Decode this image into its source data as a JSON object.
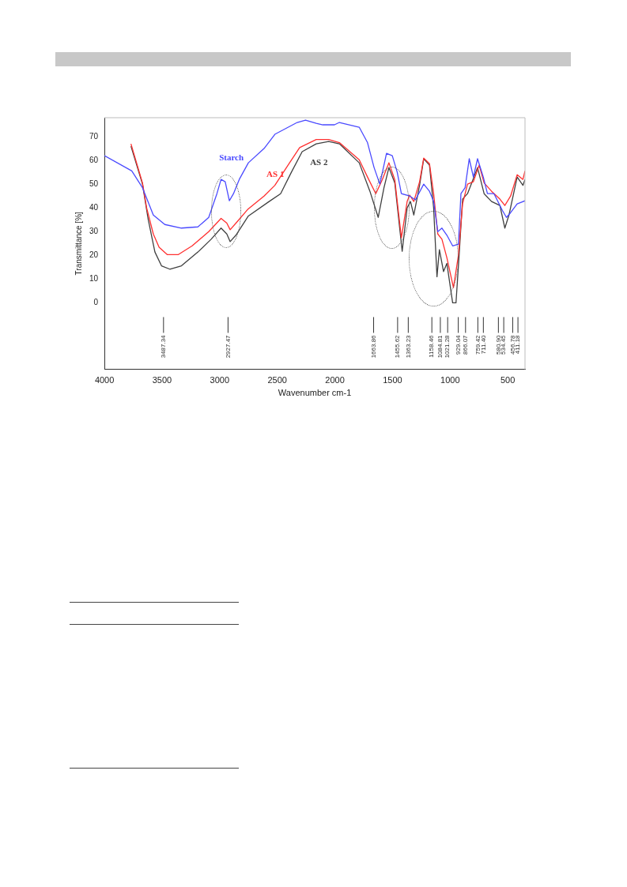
{
  "chart_data": {
    "type": "line",
    "xlabel": "Wavenumber cm-1",
    "ylabel": "Transmittance [%]",
    "xlim": [
      4000,
      350
    ],
    "xticks": [
      4000,
      3500,
      3000,
      2500,
      2000,
      1500,
      1000,
      500
    ],
    "ylim": [
      -28,
      78
    ],
    "yticks": [
      0,
      10,
      20,
      30,
      40,
      50,
      60,
      70
    ],
    "grid": false,
    "legend": false,
    "marker": "none",
    "line_style": "solid",
    "series": [
      {
        "name": "Starch",
        "color": "#4a4aff",
        "x": [
          4000,
          3763,
          3670,
          3576,
          3476,
          3332,
          3189,
          3095,
          3024,
          2988,
          2952,
          2916,
          2880,
          2830,
          2751,
          2615,
          2521,
          2327,
          2255,
          2162,
          2105,
          2004,
          1961,
          1789,
          1717,
          1660,
          1610,
          1552,
          1502,
          1459,
          1423,
          1351,
          1301,
          1229,
          1179,
          1143,
          1107,
          1071,
          1028,
          978,
          928,
          906,
          870,
          834,
          798,
          762,
          712,
          676,
          619,
          547,
          511,
          475,
          418,
          350
        ],
        "values": [
          62,
          55.6,
          48.5,
          37,
          33,
          31.5,
          32,
          36,
          46,
          52,
          51,
          43,
          46,
          52,
          59,
          65,
          71,
          76,
          77,
          75.6,
          75,
          75,
          76,
          74,
          67.5,
          57,
          50,
          63,
          62,
          55,
          46,
          45,
          43.4,
          50,
          47,
          42.7,
          30,
          31.5,
          28.5,
          24,
          24.7,
          46,
          48.5,
          60.7,
          53,
          60.7,
          53,
          46,
          46,
          39,
          36,
          38,
          41.7,
          43
        ]
      },
      {
        "name": "AS 1",
        "color": "#ff3030",
        "x": [
          3770,
          3670,
          3634,
          3576,
          3526,
          3454,
          3361,
          3239,
          3095,
          2988,
          2938,
          2909,
          2859,
          2758,
          2615,
          2521,
          2399,
          2306,
          2162,
          2054,
          1961,
          1789,
          1717,
          1645,
          1588,
          1531,
          1480,
          1423,
          1373,
          1351,
          1315,
          1265,
          1229,
          1179,
          1143,
          1107,
          1071,
          1028,
          971,
          928,
          892,
          849,
          798,
          748,
          705,
          640,
          568,
          525,
          475,
          418,
          368,
          350
        ],
        "values": [
          67,
          50.5,
          40,
          29,
          23.4,
          20.3,
          20.3,
          24,
          30,
          35.6,
          33.6,
          30.8,
          33.6,
          39.3,
          45,
          49.5,
          58.6,
          65.4,
          68.8,
          68.8,
          67.5,
          60.3,
          53,
          46,
          52,
          59,
          51.8,
          27.4,
          42.7,
          45.4,
          42.7,
          51,
          61,
          58.6,
          46,
          29,
          26.8,
          19,
          6.4,
          20,
          41.7,
          50,
          51,
          58,
          50.5,
          47,
          43.7,
          41,
          45,
          54,
          52,
          55.6
        ]
      },
      {
        "name": "AS 2",
        "color": "#404040",
        "x": [
          3770,
          3670,
          3620,
          3562,
          3505,
          3433,
          3332,
          3189,
          3074,
          2988,
          2938,
          2909,
          2859,
          2751,
          2571,
          2471,
          2378,
          2284,
          2162,
          2054,
          1961,
          1789,
          1696,
          1624,
          1574,
          1531,
          1480,
          1416,
          1373,
          1344,
          1315,
          1265,
          1229,
          1179,
          1143,
          1114,
          1093,
          1057,
          1028,
          978,
          949,
          920,
          892,
          849,
          813,
          762,
          705,
          640,
          568,
          525,
          489,
          418,
          368,
          350
        ],
        "values": [
          66,
          50,
          35,
          21.4,
          15.6,
          14.2,
          15.6,
          21.4,
          26.8,
          31.5,
          29,
          25.8,
          28.5,
          36.6,
          42.7,
          46,
          55,
          63.7,
          67,
          68,
          67,
          59,
          47,
          36,
          48.5,
          57,
          50.5,
          21.7,
          40,
          42.7,
          37,
          49.5,
          60.7,
          58,
          40,
          11,
          22.4,
          13.2,
          16.6,
          0,
          0,
          21.4,
          43.7,
          46,
          50.5,
          57,
          46,
          42.7,
          41,
          31.5,
          37,
          53,
          49.5,
          52
        ]
      }
    ],
    "ref_lines": [
      {
        "axis": "x",
        "value": 3487.34,
        "label": "3487.34"
      },
      {
        "axis": "x",
        "value": 2927.47,
        "label": "2927.47"
      },
      {
        "axis": "x",
        "value": 1663.86,
        "label": "1663.86"
      },
      {
        "axis": "x",
        "value": 1455.62,
        "label": "1455.62"
      },
      {
        "axis": "x",
        "value": 1363.23,
        "label": "1363.23"
      },
      {
        "axis": "x",
        "value": 1158.46,
        "label": "1158.46"
      },
      {
        "axis": "x",
        "value": 1084.81,
        "label": "1084.81"
      },
      {
        "axis": "x",
        "value": 1021.28,
        "label": "1021.28"
      },
      {
        "axis": "x",
        "value": 929.04,
        "label": "929.04"
      },
      {
        "axis": "x",
        "value": 866.07,
        "label": "866.07"
      },
      {
        "axis": "x",
        "value": 759.42,
        "label": "759.42"
      },
      {
        "axis": "x",
        "value": 711.4,
        "label": "711.40"
      },
      {
        "axis": "x",
        "value": 580.9,
        "label": "580.90"
      },
      {
        "axis": "x",
        "value": 534.45,
        "label": "534.45"
      },
      {
        "axis": "x",
        "value": 456.78,
        "label": "456.78"
      },
      {
        "axis": "x",
        "value": 411.18,
        "label": "411.18"
      }
    ]
  }
}
